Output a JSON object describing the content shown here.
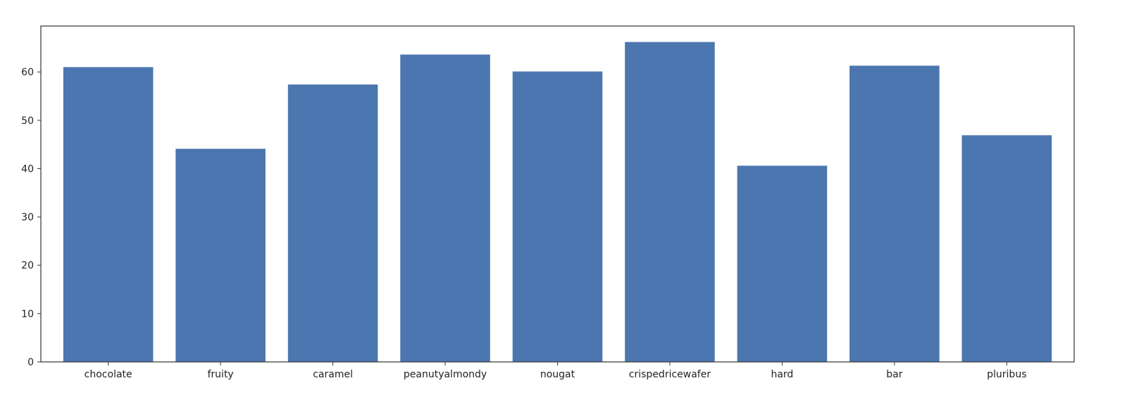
{
  "chart_data": {
    "type": "bar",
    "title": "",
    "xlabel": "",
    "ylabel": "",
    "categories": [
      "chocolate",
      "fruity",
      "caramel",
      "peanutyalmondy",
      "nougat",
      "crispedricewafer",
      "hard",
      "bar",
      "pluribus"
    ],
    "values": [
      61.0,
      44.1,
      57.4,
      63.6,
      60.1,
      66.2,
      40.6,
      61.3,
      46.9
    ],
    "ylim": [
      0,
      69.5
    ],
    "yticks": [
      0,
      10,
      20,
      30,
      40,
      50,
      60
    ],
    "grid": false,
    "legend": "none",
    "bar_color": "#4c76af"
  }
}
